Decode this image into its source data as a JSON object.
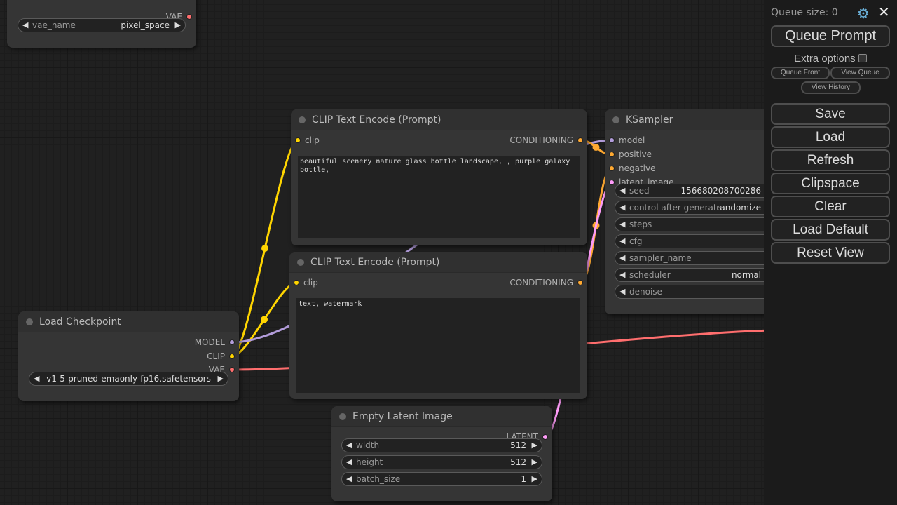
{
  "sidebar": {
    "queue_size": "Queue size: 0",
    "queue_prompt": "Queue Prompt",
    "extra_options": "Extra options",
    "queue_front": "Queue Front",
    "view_queue": "View Queue",
    "view_history": "View History",
    "buttons": [
      "Save",
      "Load",
      "Refresh",
      "Clipspace",
      "Clear",
      "Load Default",
      "Reset View"
    ]
  },
  "colors": {
    "MODEL": "#b39ddb",
    "CLIP": "#ffd500",
    "VAE": "#ff6e6e",
    "CONDITIONING": "#ffa931",
    "LATENT": "#ff9cf9"
  },
  "nodes": [
    {
      "id": "vae-loader",
      "title": "",
      "outputs": [
        {
          "name": "VAE",
          "type": "VAE"
        }
      ],
      "widgets": [
        {
          "name": "vae_name",
          "value": "pixel_space",
          "arrows": true
        }
      ]
    },
    {
      "id": "clip-text-encode-positive",
      "title": "CLIP Text Encode (Prompt)",
      "inputs": [
        {
          "name": "clip",
          "type": "CLIP"
        }
      ],
      "outputs": [
        {
          "name": "CONDITIONING",
          "type": "CONDITIONING"
        }
      ],
      "text": "beautiful scenery nature glass bottle landscape, , purple galaxy bottle,"
    },
    {
      "id": "clip-text-encode-negative",
      "title": "CLIP Text Encode (Prompt)",
      "inputs": [
        {
          "name": "clip",
          "type": "CLIP"
        }
      ],
      "outputs": [
        {
          "name": "CONDITIONING",
          "type": "CONDITIONING"
        }
      ],
      "text": "text, watermark"
    },
    {
      "id": "load-checkpoint",
      "title": "Load Checkpoint",
      "outputs": [
        {
          "name": "MODEL",
          "type": "MODEL"
        },
        {
          "name": "CLIP",
          "type": "CLIP"
        },
        {
          "name": "VAE",
          "type": "VAE"
        }
      ],
      "widgets": [
        {
          "name": "",
          "value": "v1-5-pruned-emaonly-fp16.safetensors",
          "arrows": true,
          "center": true
        }
      ]
    },
    {
      "id": "empty-latent-image",
      "title": "Empty Latent Image",
      "outputs": [
        {
          "name": "LATENT",
          "type": "LATENT"
        }
      ],
      "widgets": [
        {
          "name": "width",
          "value": "512",
          "arrows": true
        },
        {
          "name": "height",
          "value": "512",
          "arrows": true
        },
        {
          "name": "batch_size",
          "value": "1",
          "arrows": true
        }
      ]
    },
    {
      "id": "ksampler",
      "title": "KSampler",
      "inputs": [
        {
          "name": "model",
          "type": "MODEL"
        },
        {
          "name": "positive",
          "type": "CONDITIONING"
        },
        {
          "name": "negative",
          "type": "CONDITIONING"
        },
        {
          "name": "latent_image",
          "type": "LATENT"
        }
      ],
      "widgets": [
        {
          "name": "seed",
          "value": "156680208700286",
          "arrows": true
        },
        {
          "name": "control after generate",
          "value": "randomize",
          "arrows": true
        },
        {
          "name": "steps",
          "value": "",
          "arrows": true
        },
        {
          "name": "cfg",
          "value": "",
          "arrows": true
        },
        {
          "name": "sampler_name",
          "value": "",
          "arrows": true
        },
        {
          "name": "scheduler",
          "value": "normal",
          "arrows": true
        },
        {
          "name": "denoise",
          "value": "",
          "arrows": true
        }
      ]
    }
  ]
}
